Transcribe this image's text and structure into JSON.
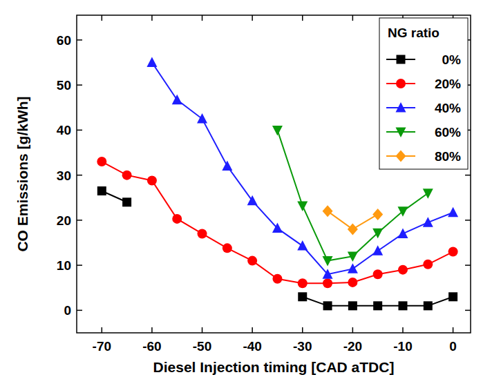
{
  "chart_data": {
    "type": "line",
    "x_label": "Diesel Injection timing [CAD aTDC]",
    "y_label": "CO Emissions [g/kWh]",
    "legend_title": "NG ratio",
    "legend": "upper right",
    "grid": false,
    "x": [
      -70,
      -65,
      -60,
      -55,
      -50,
      -45,
      -40,
      -35,
      -30,
      -25,
      -20,
      -15,
      -10,
      -5,
      0
    ],
    "xlim": [
      -75,
      3.5
    ],
    "xticks": [
      -70,
      -60,
      -50,
      -40,
      -30,
      -20,
      -10,
      0
    ],
    "ylim": [
      -5,
      65.5
    ],
    "yticks": [
      0,
      10,
      20,
      30,
      40,
      50,
      60
    ],
    "series": [
      {
        "name": "0%",
        "color": "#000000",
        "marker": "square",
        "line_style": "solid",
        "values": [
          26.5,
          24,
          null,
          null,
          null,
          null,
          null,
          null,
          3,
          1,
          1,
          1,
          1,
          1,
          3
        ]
      },
      {
        "name": "20%",
        "color": "#ff0000",
        "marker": "circle",
        "line_style": "solid",
        "values": [
          33,
          30,
          28.8,
          20.3,
          17,
          13.8,
          11,
          7,
          6,
          6,
          6.2,
          8,
          9,
          10.2,
          13
        ]
      },
      {
        "name": "40%",
        "color": "#1e1eff",
        "marker": "triangle-up",
        "line_style": "solid",
        "values": [
          null,
          null,
          55,
          46.7,
          42.5,
          32,
          24.3,
          18.2,
          14.3,
          8,
          9.2,
          13.2,
          17,
          19.5,
          21.7
        ]
      },
      {
        "name": "60%",
        "color": "#0a9a0a",
        "marker": "triangle-down",
        "line_style": "solid",
        "values": [
          null,
          null,
          null,
          null,
          null,
          null,
          null,
          40,
          23.2,
          11,
          12,
          17.2,
          22,
          26,
          null
        ]
      },
      {
        "name": "80%",
        "color": "#ff9a10",
        "marker": "diamond",
        "line_style": "solid",
        "values": [
          null,
          null,
          null,
          null,
          null,
          null,
          null,
          null,
          null,
          22,
          18,
          21.3,
          null,
          null,
          null
        ]
      }
    ]
  }
}
